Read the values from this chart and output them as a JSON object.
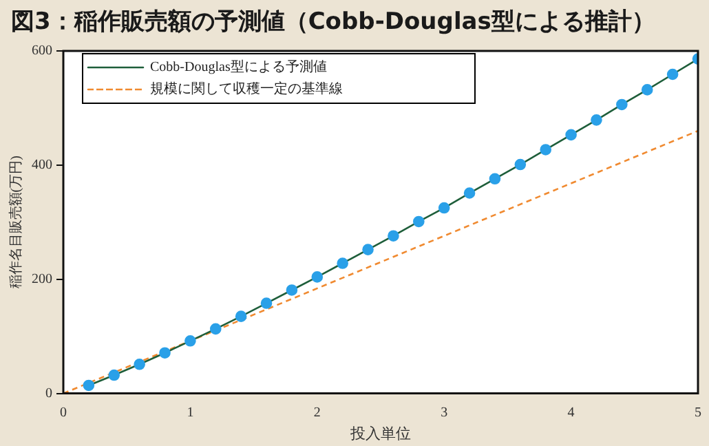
{
  "chart_data": {
    "type": "line",
    "title": "図3：稲作販売額の予測値（Cobb-Douglas型による推計）",
    "xlabel": "投入単位",
    "ylabel": "稲作名目販売額(万円)",
    "xlim": [
      0,
      5
    ],
    "xticks": [
      0,
      1,
      2,
      3,
      4,
      5
    ],
    "ylim": [
      0,
      600
    ],
    "yticks": [
      0,
      200,
      400,
      600
    ],
    "grid": false,
    "legend": "top left",
    "series": [
      {
        "name": "Cobb-Douglas型による予測値",
        "color": "#1e5e3a",
        "marker": "circle",
        "line_style": "solid",
        "colors": [
          "#2aa0e8",
          "#2aa0e8",
          "#2aa0e8",
          "#2aa0e8",
          "#2aa0e8",
          "#2aa0e8",
          "#2aa0e8",
          "#2aa0e8",
          "#2aa0e8",
          "#2aa0e8",
          "#2aa0e8",
          "#2aa0e8",
          "#2aa0e8",
          "#2aa0e8",
          "#2aa0e8",
          "#2aa0e8",
          "#2aa0e8",
          "#2aa0e8",
          "#2aa0e8",
          "#2aa0e8",
          "#2aa0e8",
          "#2aa0e8",
          "#2aa0e8",
          "#2aa0e8",
          "#2aa0e8"
        ],
        "x": [
          0.2,
          0.4,
          0.6,
          0.8,
          1.0,
          1.2,
          1.4,
          1.6,
          1.8,
          2.0,
          2.2,
          2.4,
          2.6,
          2.8,
          3.0,
          3.2,
          3.4,
          3.6,
          3.8,
          4.0,
          4.2,
          4.4,
          4.6,
          4.8,
          5.0
        ],
        "values": [
          14,
          32,
          51,
          71,
          92,
          113,
          135,
          158,
          181,
          204,
          228,
          252,
          276,
          301,
          325,
          351,
          376,
          401,
          427,
          453,
          479,
          506,
          532,
          559,
          586
        ]
      },
      {
        "name": "規模に関して収穫一定の基準線",
        "color": "#f08a30",
        "marker": "none",
        "line_style": "dashed",
        "x": [
          0,
          5
        ],
        "values": [
          0,
          460
        ]
      }
    ]
  }
}
